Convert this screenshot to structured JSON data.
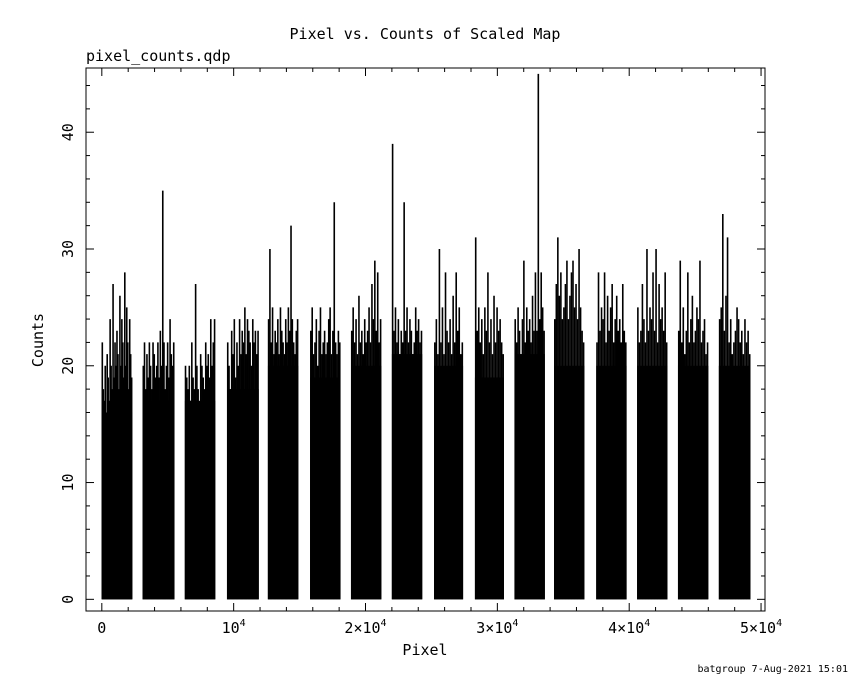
{
  "chart_data": {
    "type": "bar",
    "title": "Pixel vs. Counts of Scaled Map",
    "subtitle": "pixel_counts.qdp",
    "xlabel": "Pixel",
    "ylabel": "Counts",
    "xlim": [
      -1200,
      50300
    ],
    "ylim": [
      -1,
      45.5
    ],
    "x_ticks": [
      {
        "value": 0,
        "label": "0",
        "mant": "0",
        "exp": ""
      },
      {
        "value": 10000,
        "label": "10^4",
        "mant": "10",
        "exp": "4"
      },
      {
        "value": 20000,
        "label": "2×10^4",
        "mant": "2×10",
        "exp": "4"
      },
      {
        "value": 30000,
        "label": "3×10^4",
        "mant": "3×10",
        "exp": "4"
      },
      {
        "value": 40000,
        "label": "4×10^4",
        "mant": "4×10",
        "exp": "4"
      },
      {
        "value": 50000,
        "label": "5×10^4",
        "mant": "5×10",
        "exp": "4"
      }
    ],
    "y_ticks": [
      {
        "value": 0,
        "label": "0"
      },
      {
        "value": 10,
        "label": "10"
      },
      {
        "value": 20,
        "label": "20"
      },
      {
        "value": 30,
        "label": "30"
      },
      {
        "value": 40,
        "label": "40"
      }
    ],
    "blocks": [
      {
        "x_start": 0,
        "x_end": 2300,
        "base": 16,
        "values": [
          22,
          18,
          17,
          20,
          16,
          21,
          19,
          17,
          24,
          20,
          18,
          27,
          19,
          22,
          20,
          23,
          21,
          18,
          26,
          20,
          24,
          22,
          19,
          28,
          20,
          25,
          22,
          18,
          24,
          21,
          19
        ]
      },
      {
        "x_start": 3100,
        "x_end": 5500,
        "base": 17,
        "values": [
          20,
          22,
          18,
          21,
          19,
          22,
          20,
          18,
          22,
          21,
          19,
          20,
          22,
          19,
          23,
          20,
          35,
          22,
          18,
          20,
          22,
          19,
          24,
          21,
          20,
          22
        ]
      },
      {
        "x_start": 6300,
        "x_end": 8600,
        "base": 17,
        "values": [
          20,
          19,
          18,
          20,
          17,
          22,
          19,
          18,
          27,
          20,
          18,
          16,
          21,
          20,
          19,
          18,
          22,
          20,
          21,
          19,
          24,
          20,
          22,
          24
        ]
      },
      {
        "x_start": 9500,
        "x_end": 11900,
        "base": 18,
        "values": [
          22,
          20,
          18,
          23,
          21,
          24,
          19,
          22,
          20,
          24,
          21,
          23,
          22,
          25,
          21,
          24,
          23,
          22,
          20,
          24,
          22,
          23,
          21,
          23
        ]
      },
      {
        "x_start": 12600,
        "x_end": 14900,
        "base": 20,
        "values": [
          24,
          30,
          22,
          25,
          21,
          23,
          22,
          24,
          21,
          25,
          23,
          22,
          21,
          24,
          22,
          25,
          23,
          32,
          24,
          22,
          21,
          23,
          24
        ]
      },
      {
        "x_start": 15800,
        "x_end": 18100,
        "base": 19,
        "values": [
          23,
          25,
          21,
          22,
          24,
          20,
          23,
          25,
          21,
          22,
          23,
          21,
          22,
          24,
          25,
          21,
          23,
          34,
          22,
          21,
          23,
          22
        ]
      },
      {
        "x_start": 18900,
        "x_end": 21200,
        "base": 20,
        "values": [
          23,
          25,
          22,
          24,
          21,
          26,
          22,
          23,
          21,
          24,
          22,
          23,
          25,
          22,
          27,
          24,
          29,
          23,
          28,
          22,
          24
        ]
      },
      {
        "x_start": 22000,
        "x_end": 24300,
        "base": 21,
        "values": [
          39,
          23,
          25,
          22,
          24,
          21,
          23,
          22,
          34,
          23,
          25,
          22,
          24,
          23,
          21,
          22,
          25,
          23,
          24,
          22,
          23
        ]
      },
      {
        "x_start": 25200,
        "x_end": 27400,
        "base": 20,
        "values": [
          22,
          24,
          21,
          30,
          22,
          25,
          21,
          28,
          23,
          22,
          24,
          21,
          26,
          22,
          28,
          23,
          25,
          21,
          22
        ]
      },
      {
        "x_start": 28300,
        "x_end": 30500,
        "base": 19,
        "values": [
          31,
          23,
          25,
          22,
          24,
          21,
          25,
          23,
          28,
          22,
          24,
          21,
          26,
          22,
          25,
          23,
          24,
          22,
          21
        ]
      },
      {
        "x_start": 31300,
        "x_end": 33600,
        "base": 21,
        "values": [
          24,
          22,
          25,
          23,
          21,
          24,
          29,
          22,
          25,
          23,
          24,
          22,
          26,
          23,
          28,
          23,
          45,
          24,
          28,
          25,
          23
        ]
      },
      {
        "x_start": 34300,
        "x_end": 36600,
        "base": 20,
        "values": [
          24,
          27,
          31,
          26,
          28,
          24,
          25,
          27,
          29,
          24,
          26,
          28,
          29,
          25,
          27,
          24,
          30,
          25,
          23,
          22
        ]
      },
      {
        "x_start": 37500,
        "x_end": 39800,
        "base": 20,
        "values": [
          22,
          28,
          23,
          25,
          24,
          28,
          22,
          26,
          23,
          25,
          27,
          22,
          24,
          26,
          23,
          24,
          22,
          27,
          23,
          22
        ]
      },
      {
        "x_start": 40600,
        "x_end": 42900,
        "base": 20,
        "values": [
          25,
          22,
          23,
          27,
          24,
          22,
          30,
          23,
          25,
          24,
          28,
          23,
          30,
          22,
          27,
          24,
          25,
          23,
          28,
          22
        ]
      },
      {
        "x_start": 43700,
        "x_end": 46000,
        "base": 20,
        "values": [
          23,
          29,
          22,
          25,
          21,
          23,
          28,
          22,
          24,
          26,
          22,
          23,
          25,
          24,
          29,
          22,
          23,
          24,
          21,
          22
        ]
      },
      {
        "x_start": 46800,
        "x_end": 49200,
        "base": 20,
        "values": [
          24,
          25,
          33,
          23,
          26,
          31,
          22,
          24,
          21,
          22,
          23,
          25,
          24,
          22,
          23,
          21,
          24,
          22,
          23,
          21
        ]
      }
    ],
    "grid": false,
    "legend": "none"
  },
  "footer": {
    "credit": "batgroup  7-Aug-2021 15:01"
  }
}
